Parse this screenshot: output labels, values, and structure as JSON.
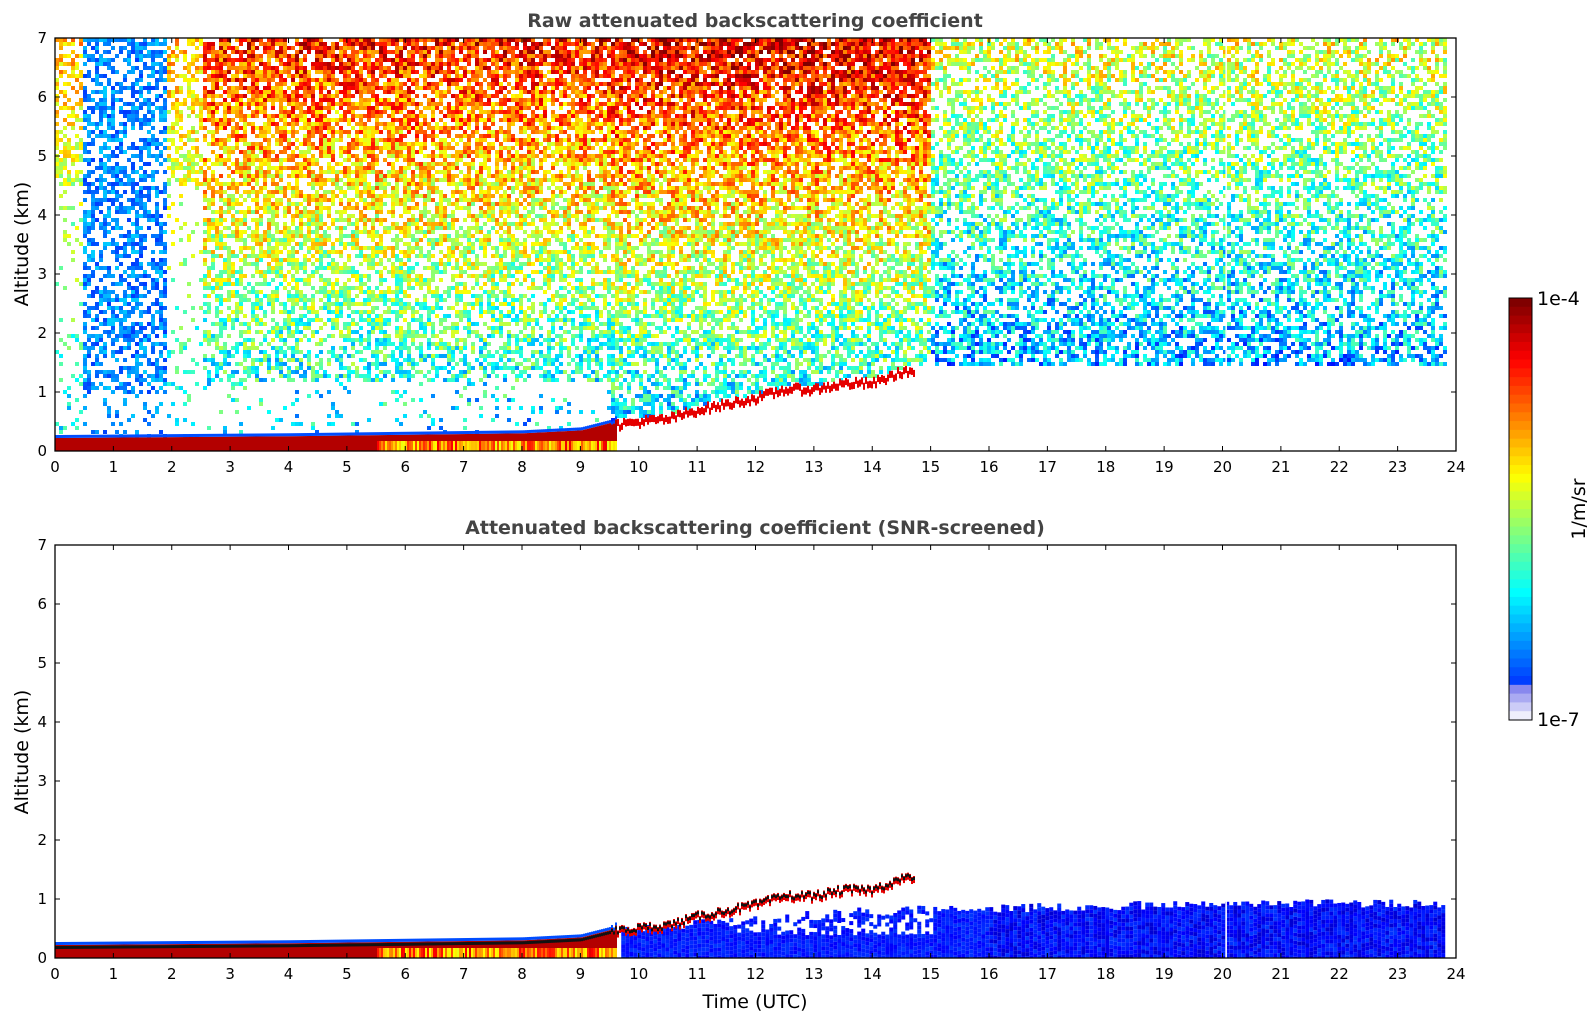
{
  "chart_data": [
    {
      "type": "heatmap",
      "title": "Raw attenuated backscattering coefficient",
      "xlabel": "",
      "ylabel": "Altitude (km)",
      "xlim": [
        0,
        24
      ],
      "ylim": [
        0,
        7
      ],
      "xticks": [
        "0",
        "1",
        "2",
        "3",
        "4",
        "5",
        "6",
        "7",
        "8",
        "9",
        "10",
        "11",
        "12",
        "13",
        "14",
        "15",
        "16",
        "17",
        "18",
        "19",
        "20",
        "21",
        "22",
        "23",
        "24"
      ],
      "yticks": [
        "0",
        "1",
        "2",
        "3",
        "4",
        "5",
        "6",
        "7"
      ],
      "data_end_time": 23.8,
      "boundary_layer_top_km": [
        [
          0,
          0.22
        ],
        [
          4,
          0.25
        ],
        [
          8,
          0.3
        ],
        [
          9,
          0.35
        ],
        [
          9.6,
          0.5
        ],
        [
          10,
          0.55
        ],
        [
          10.5,
          0.6
        ],
        [
          11,
          0.75
        ],
        [
          11.5,
          0.85
        ],
        [
          12,
          0.95
        ],
        [
          12.5,
          1.1
        ],
        [
          13,
          1.1
        ],
        [
          13.5,
          1.2
        ],
        [
          14,
          1.2
        ],
        [
          14.5,
          1.4
        ]
      ],
      "noise_field": true,
      "colorscale": "log"
    },
    {
      "type": "heatmap",
      "title": "Attenuated backscattering coefficient (SNR-screened)",
      "xlabel": "Time (UTC)",
      "ylabel": "Altitude (km)",
      "xlim": [
        0,
        24
      ],
      "ylim": [
        0,
        7
      ],
      "xticks": [
        "0",
        "1",
        "2",
        "3",
        "4",
        "5",
        "6",
        "7",
        "8",
        "9",
        "10",
        "11",
        "12",
        "13",
        "14",
        "15",
        "16",
        "17",
        "18",
        "19",
        "20",
        "21",
        "22",
        "23",
        "24"
      ],
      "yticks": [
        "0",
        "1",
        "2",
        "3",
        "4",
        "5",
        "6",
        "7"
      ],
      "data_end_time": 23.8,
      "boundary_layer_top_km": [
        [
          0,
          0.22
        ],
        [
          4,
          0.25
        ],
        [
          8,
          0.3
        ],
        [
          9,
          0.35
        ],
        [
          9.6,
          0.5
        ],
        [
          10,
          0.55
        ],
        [
          10.5,
          0.6
        ],
        [
          11,
          0.75
        ],
        [
          11.5,
          0.85
        ],
        [
          12,
          0.95
        ],
        [
          12.5,
          1.1
        ],
        [
          13,
          1.1
        ],
        [
          13.5,
          1.2
        ],
        [
          14,
          1.2
        ],
        [
          14.5,
          1.4
        ]
      ],
      "screened_layer_top_km": [
        [
          9.7,
          0.45
        ],
        [
          11,
          0.6
        ],
        [
          12,
          0.7
        ],
        [
          13,
          0.75
        ],
        [
          14,
          0.8
        ],
        [
          15,
          0.82
        ],
        [
          16,
          0.84
        ],
        [
          17,
          0.86
        ],
        [
          18,
          0.88
        ],
        [
          19,
          0.9
        ],
        [
          20,
          0.9
        ],
        [
          21,
          0.92
        ],
        [
          22,
          0.92
        ],
        [
          23,
          0.92
        ],
        [
          23.8,
          0.9
        ]
      ],
      "noise_field": false,
      "colorscale": "log"
    }
  ],
  "colorbar": {
    "max_label": "1e-4",
    "min_label": "1e-7",
    "unit_label": "1/m/sr",
    "colormap": "jet"
  }
}
